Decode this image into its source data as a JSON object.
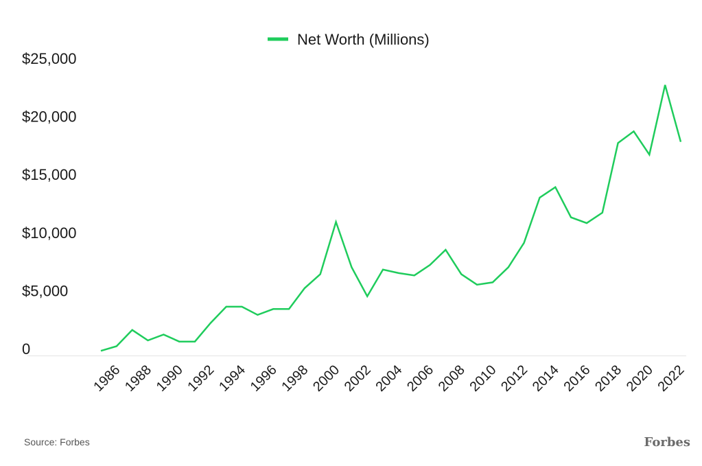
{
  "chart_data": {
    "type": "line",
    "title": "",
    "xlabel": "",
    "ylabel": "",
    "legend": {
      "position": "top-center"
    },
    "grid": false,
    "ylim": [
      0,
      25000
    ],
    "yticks": [
      0,
      5000,
      10000,
      15000,
      20000,
      25000
    ],
    "ytick_labels": [
      "0",
      "$5,000",
      "$10,000",
      "$15,000",
      "$20,000",
      "$25,000"
    ],
    "xtick_labels": [
      "1986",
      "1988",
      "1990",
      "1992",
      "1994",
      "1996",
      "1998",
      "2000",
      "2002",
      "2004",
      "2006",
      "2008",
      "2010",
      "2012",
      "2014",
      "2016",
      "2018",
      "2020",
      "2022"
    ],
    "x": [
      1985,
      1986,
      1987,
      1988,
      1989,
      1990,
      1991,
      1992,
      1993,
      1994,
      1995,
      1996,
      1997,
      1998,
      1999,
      2000,
      2001,
      2002,
      2003,
      2004,
      2005,
      2006,
      2007,
      2008,
      2009,
      2010,
      2011,
      2012,
      2013,
      2014,
      2015,
      2016,
      2017,
      2018,
      2019,
      2020,
      2021,
      2022
    ],
    "series": [
      {
        "name": "Net Worth (Millions)",
        "color": "#1fcc5c",
        "values": [
          400,
          800,
          2200,
          1300,
          1800,
          1200,
          1200,
          2800,
          4200,
          4200,
          3500,
          4000,
          4000,
          5800,
          7000,
          11500,
          7600,
          5100,
          7400,
          7100,
          6900,
          7800,
          9100,
          7000,
          6100,
          6300,
          7600,
          9700,
          13600,
          14500,
          11900,
          11400,
          12300,
          18300,
          19300,
          17300,
          23300,
          18400
        ]
      }
    ]
  },
  "source_text": "Source: Forbes",
  "brand_text": "Forbes"
}
